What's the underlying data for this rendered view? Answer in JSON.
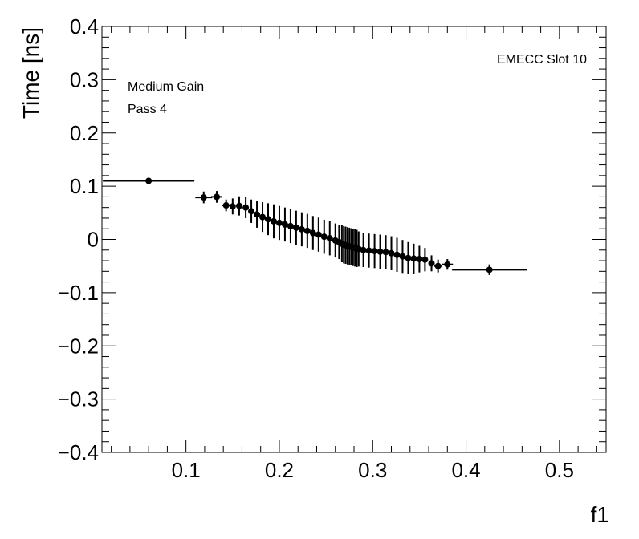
{
  "chart_data": {
    "type": "scatter",
    "title": "",
    "xlabel": "f1",
    "ylabel": "Time [ns]",
    "xlim": [
      0.01,
      0.55
    ],
    "ylim": [
      -0.4,
      0.4
    ],
    "x_ticks": [
      0.1,
      0.2,
      0.3,
      0.4,
      0.5
    ],
    "y_ticks": [
      -0.4,
      -0.3,
      -0.2,
      -0.1,
      0,
      0.1,
      0.2,
      0.3,
      0.4
    ],
    "x_tick_labels": [
      "0.1",
      "0.2",
      "0.3",
      "0.4",
      "0.5"
    ],
    "y_tick_labels": [
      "−0.4",
      "−0.3",
      "−0.2",
      "−0.1",
      "0",
      "0.1",
      "0.2",
      "0.3",
      "0.4"
    ],
    "annotations": {
      "top_left_line1": "Medium Gain",
      "top_left_line2": "Pass 4",
      "top_right": "EMECC Slot 10"
    },
    "series": [
      {
        "name": "EMECC Slot 10",
        "points": [
          {
            "x": 0.06,
            "y": 0.11,
            "xerr": 0.049,
            "yerr": 0.006
          },
          {
            "x": 0.119,
            "y": 0.079,
            "xerr": 0.009,
            "yerr": 0.011
          },
          {
            "x": 0.133,
            "y": 0.08,
            "xerr": 0.006,
            "yerr": 0.011
          },
          {
            "x": 0.143,
            "y": 0.064,
            "xerr": 0.004,
            "yerr": 0.011
          },
          {
            "x": 0.15,
            "y": 0.062,
            "xerr": 0.003,
            "yerr": 0.015
          },
          {
            "x": 0.157,
            "y": 0.063,
            "xerr": 0.003,
            "yerr": 0.018
          },
          {
            "x": 0.164,
            "y": 0.06,
            "xerr": 0.002,
            "yerr": 0.02
          },
          {
            "x": 0.17,
            "y": 0.053,
            "xerr": 0.002,
            "yerr": 0.022
          },
          {
            "x": 0.176,
            "y": 0.047,
            "xerr": 0.002,
            "yerr": 0.025
          },
          {
            "x": 0.182,
            "y": 0.042,
            "xerr": 0.002,
            "yerr": 0.028
          },
          {
            "x": 0.188,
            "y": 0.038,
            "xerr": 0.002,
            "yerr": 0.03
          },
          {
            "x": 0.194,
            "y": 0.034,
            "xerr": 0.002,
            "yerr": 0.032
          },
          {
            "x": 0.2,
            "y": 0.031,
            "xerr": 0.002,
            "yerr": 0.032
          },
          {
            "x": 0.206,
            "y": 0.028,
            "xerr": 0.002,
            "yerr": 0.032
          },
          {
            "x": 0.212,
            "y": 0.025,
            "xerr": 0.002,
            "yerr": 0.032
          },
          {
            "x": 0.218,
            "y": 0.022,
            "xerr": 0.002,
            "yerr": 0.032
          },
          {
            "x": 0.224,
            "y": 0.019,
            "xerr": 0.002,
            "yerr": 0.032
          },
          {
            "x": 0.23,
            "y": 0.016,
            "xerr": 0.002,
            "yerr": 0.032
          },
          {
            "x": 0.236,
            "y": 0.012,
            "xerr": 0.002,
            "yerr": 0.032
          },
          {
            "x": 0.242,
            "y": 0.009,
            "xerr": 0.002,
            "yerr": 0.032
          },
          {
            "x": 0.248,
            "y": 0.005,
            "xerr": 0.002,
            "yerr": 0.032
          },
          {
            "x": 0.254,
            "y": 0.002,
            "xerr": 0.002,
            "yerr": 0.032
          },
          {
            "x": 0.26,
            "y": -0.002,
            "xerr": 0.001,
            "yerr": 0.032
          },
          {
            "x": 0.264,
            "y": -0.005,
            "xerr": 0.001,
            "yerr": 0.032
          },
          {
            "x": 0.267,
            "y": -0.008,
            "xerr": 0.001,
            "yerr": 0.035
          },
          {
            "x": 0.269,
            "y": -0.01,
            "xerr": 0.001,
            "yerr": 0.035
          },
          {
            "x": 0.271,
            "y": -0.011,
            "xerr": 0.001,
            "yerr": 0.035
          },
          {
            "x": 0.273,
            "y": -0.012,
            "xerr": 0.001,
            "yerr": 0.035
          },
          {
            "x": 0.275,
            "y": -0.013,
            "xerr": 0.001,
            "yerr": 0.035
          },
          {
            "x": 0.277,
            "y": -0.014,
            "xerr": 0.001,
            "yerr": 0.035
          },
          {
            "x": 0.279,
            "y": -0.015,
            "xerr": 0.001,
            "yerr": 0.035
          },
          {
            "x": 0.281,
            "y": -0.016,
            "xerr": 0.001,
            "yerr": 0.035
          },
          {
            "x": 0.283,
            "y": -0.017,
            "xerr": 0.001,
            "yerr": 0.035
          },
          {
            "x": 0.285,
            "y": -0.018,
            "xerr": 0.001,
            "yerr": 0.033
          },
          {
            "x": 0.29,
            "y": -0.02,
            "xerr": 0.002,
            "yerr": 0.032
          },
          {
            "x": 0.296,
            "y": -0.021,
            "xerr": 0.002,
            "yerr": 0.032
          },
          {
            "x": 0.302,
            "y": -0.022,
            "xerr": 0.002,
            "yerr": 0.032
          },
          {
            "x": 0.308,
            "y": -0.023,
            "xerr": 0.002,
            "yerr": 0.032
          },
          {
            "x": 0.314,
            "y": -0.024,
            "xerr": 0.002,
            "yerr": 0.032
          },
          {
            "x": 0.32,
            "y": -0.026,
            "xerr": 0.002,
            "yerr": 0.032
          },
          {
            "x": 0.326,
            "y": -0.029,
            "xerr": 0.002,
            "yerr": 0.032
          },
          {
            "x": 0.332,
            "y": -0.032,
            "xerr": 0.002,
            "yerr": 0.031
          },
          {
            "x": 0.338,
            "y": -0.035,
            "xerr": 0.002,
            "yerr": 0.03
          },
          {
            "x": 0.344,
            "y": -0.036,
            "xerr": 0.002,
            "yerr": 0.028
          },
          {
            "x": 0.35,
            "y": -0.037,
            "xerr": 0.002,
            "yerr": 0.025
          },
          {
            "x": 0.356,
            "y": -0.038,
            "xerr": 0.002,
            "yerr": 0.022
          },
          {
            "x": 0.363,
            "y": -0.045,
            "xerr": 0.003,
            "yerr": 0.015
          },
          {
            "x": 0.37,
            "y": -0.05,
            "xerr": 0.004,
            "yerr": 0.012
          },
          {
            "x": 0.38,
            "y": -0.047,
            "xerr": 0.006,
            "yerr": 0.01
          },
          {
            "x": 0.425,
            "y": -0.057,
            "xerr": 0.04,
            "yerr": 0.01
          }
        ]
      }
    ]
  }
}
